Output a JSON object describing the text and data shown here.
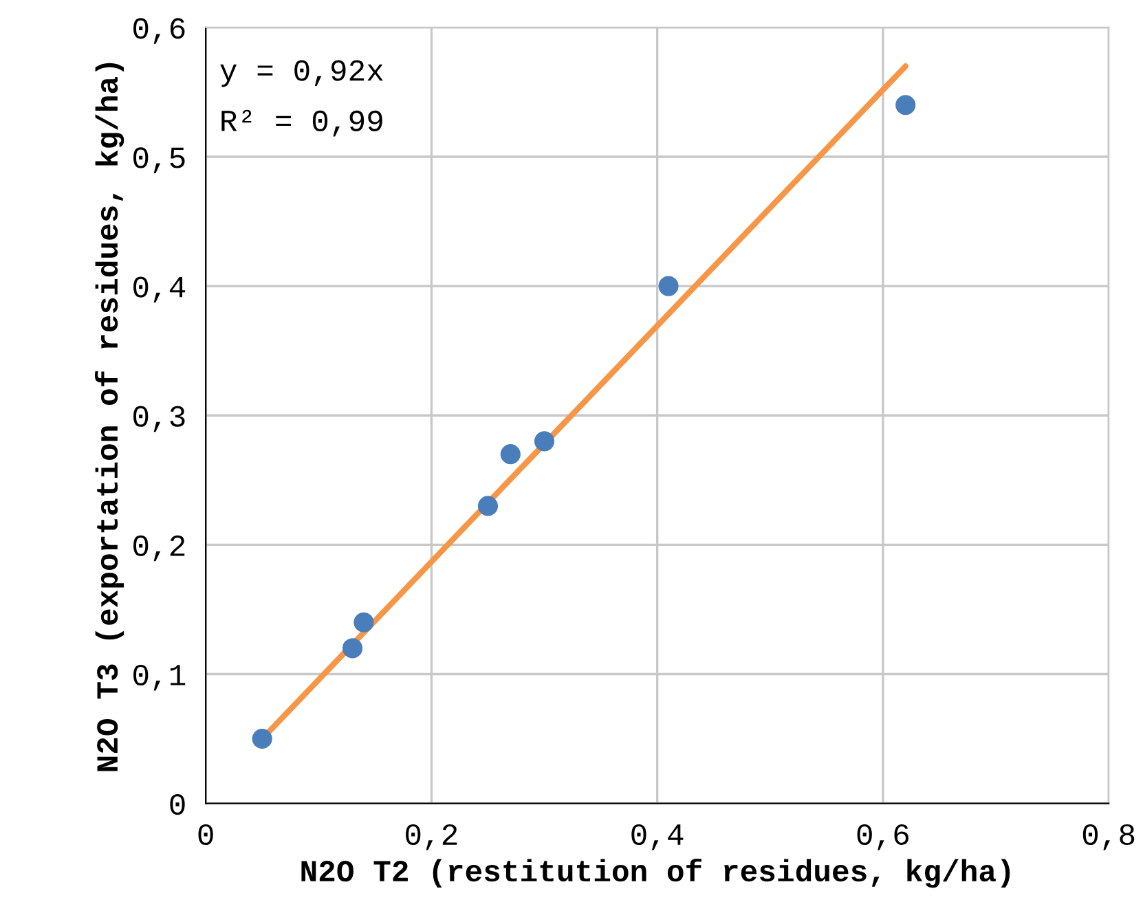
{
  "chart_data": {
    "type": "scatter",
    "xlabel": "N2O T2 (restitution of residues, kg/ha)",
    "ylabel": "N2O T3 (exportation of residues, kg/ha)",
    "annotations": [
      "y = 0,92x",
      "R² = 0,99"
    ],
    "series": [
      {
        "color": "#4a7ebb",
        "x": [
          0.05,
          0.13,
          0.14,
          0.25,
          0.27,
          0.3,
          0.41,
          0.62
        ],
        "values": [
          0.05,
          0.12,
          0.14,
          0.23,
          0.27,
          0.28,
          0.4,
          0.54
        ],
        "marker": "circle"
      },
      {
        "type": "line",
        "color": "#f79646",
        "x": [
          0.05,
          0.62
        ],
        "values": [
          0.05,
          0.57
        ],
        "line_style": "solid",
        "marker": "none"
      }
    ],
    "xlim": [
      0,
      0.8
    ],
    "ylim": [
      0,
      0.6
    ],
    "xticks": [
      {
        "value": 0,
        "label": "0"
      },
      {
        "value": 0.2,
        "label": "0,2"
      },
      {
        "value": 0.4,
        "label": "0,4"
      },
      {
        "value": 0.6,
        "label": "0,6"
      },
      {
        "value": 0.8,
        "label": "0,8"
      }
    ],
    "yticks": [
      {
        "value": 0,
        "label": "0"
      },
      {
        "value": 0.1,
        "label": "0,1"
      },
      {
        "value": 0.2,
        "label": "0,2"
      },
      {
        "value": 0.3,
        "label": "0,3"
      },
      {
        "value": 0.4,
        "label": "0,4"
      },
      {
        "value": 0.5,
        "label": "0,5"
      },
      {
        "value": 0.6,
        "label": "0,6"
      }
    ],
    "grid": true,
    "legend": false
  }
}
